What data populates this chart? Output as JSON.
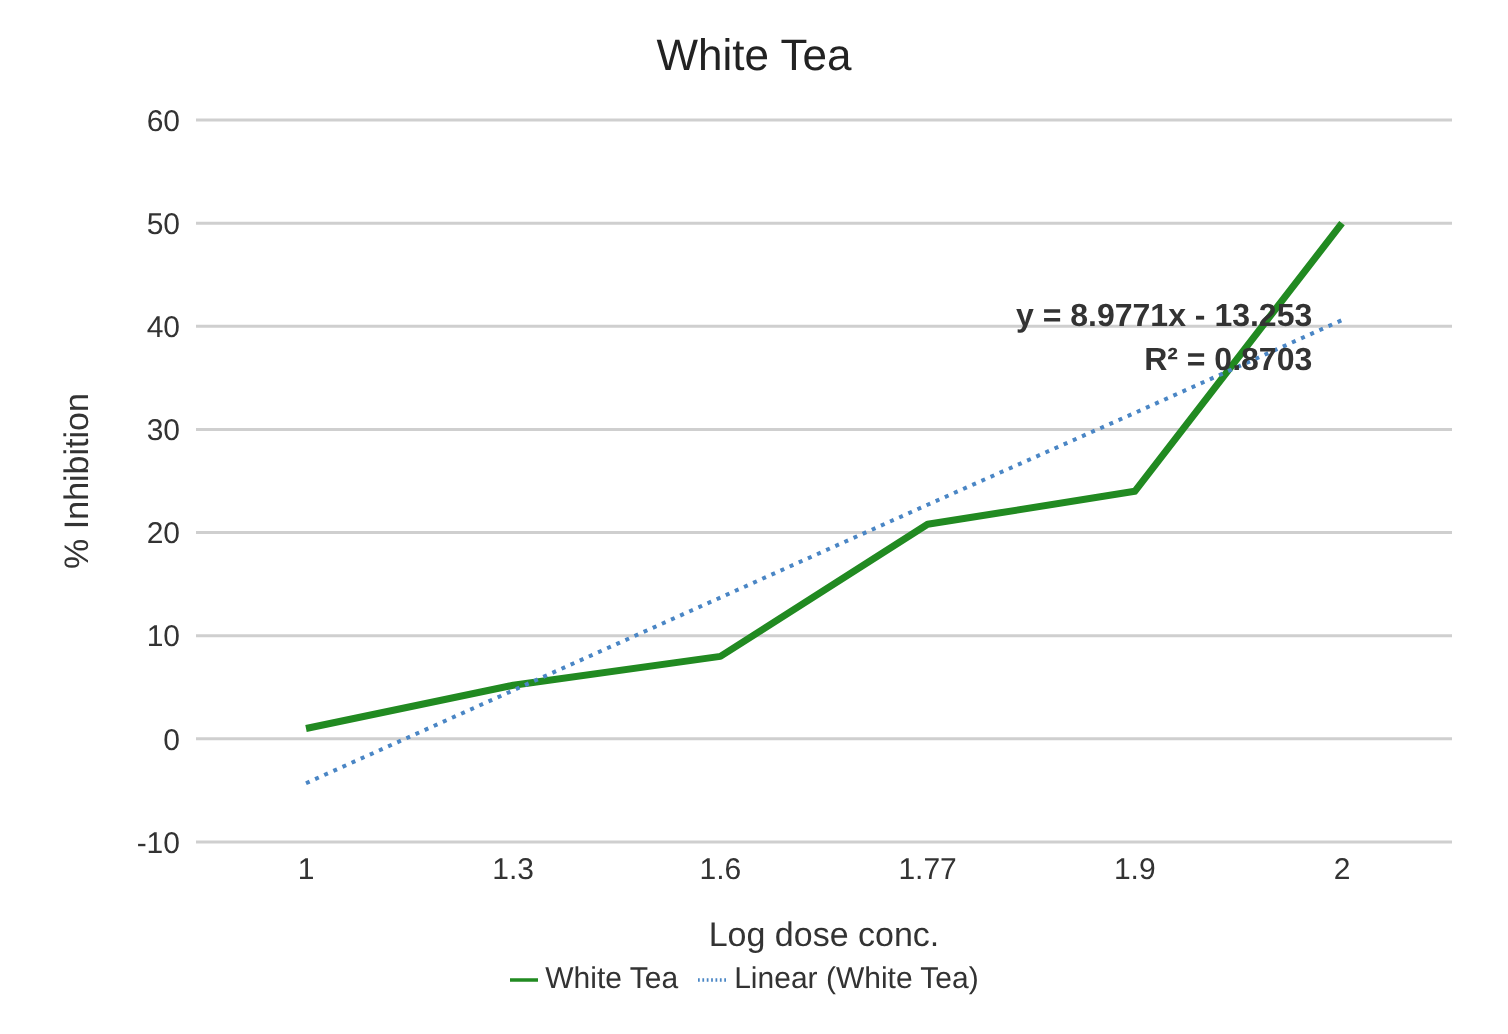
{
  "chart_data": {
    "type": "line",
    "title": "White Tea",
    "xlabel": "Log dose conc.",
    "ylabel": "% Inhibition",
    "categories": [
      "1",
      "1.3",
      "1.6",
      "1.77",
      "1.9",
      "2"
    ],
    "series": [
      {
        "name": "White Tea",
        "color": "#218a21",
        "values": [
          1,
          5.2,
          8,
          20.8,
          24,
          50
        ],
        "line_style": "solid"
      },
      {
        "name": "Linear (White Tea)",
        "color": "#4a86c5",
        "values": [
          -4.3,
          4.7,
          13.7,
          22.7,
          31.6,
          40.6
        ],
        "line_style": "dotted"
      }
    ],
    "ylim": [
      -10,
      60
    ],
    "yticks": [
      -10,
      0,
      10,
      20,
      30,
      40,
      50,
      60
    ],
    "grid": "y",
    "legend": "bottom",
    "marker": "none",
    "annotations": [
      "y = 8.9771x - 13.253",
      "R² = 0.8703"
    ]
  }
}
